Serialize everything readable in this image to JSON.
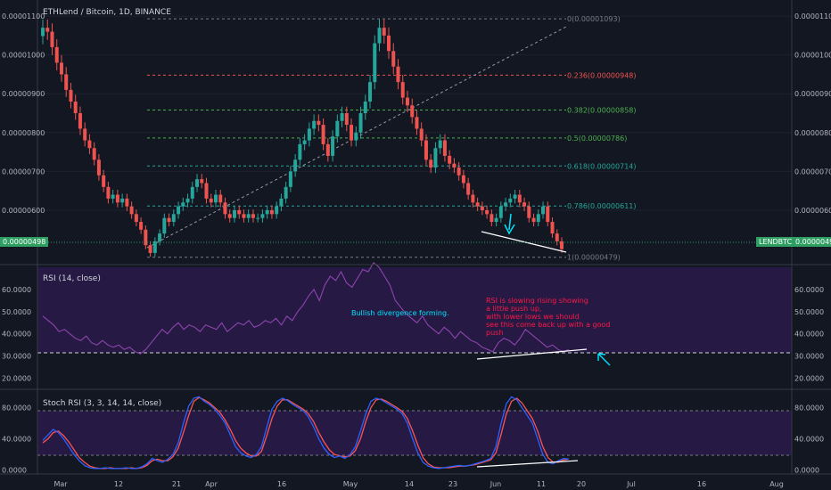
{
  "header": {
    "title": "ETHLend / Bitcoin, 1D, BINANCE"
  },
  "colors": {
    "up": "#26a69a",
    "down": "#ef5350",
    "bg": "#131722",
    "grid": "#1e2230",
    "fib_red": "#ef5350",
    "fib_green": "#4caf50",
    "fib_teal": "#26a69a",
    "fib_gray": "#787b86",
    "rsi_band": "#2a1b4a",
    "rsi_line": "#7b3fa0",
    "stoch_k": "#2962ff",
    "stoch_d": "#ff5252",
    "annotation_red": "#ff1744",
    "annotation_cyan": "#00e5ff",
    "price_tag": "#2e9e63"
  },
  "price_tag": {
    "symbol": "LENDBTC",
    "value": "0.00000498",
    "left_value": "0.00000498"
  },
  "chart_data": [
    {
      "type": "candlestick",
      "title": "ETHLend / Bitcoin, 1D, BINANCE",
      "ylim": [
        4.6e-06,
        1.13e-05
      ],
      "y_ticks": [
        "0.00001100",
        "0.00001000",
        "0.00000900",
        "0.00000800",
        "0.00000700",
        "0.00000600"
      ],
      "x_ticks": [
        "Mar",
        "12",
        "21",
        "Apr",
        "16",
        "May",
        "14",
        "23",
        "Jun",
        "11",
        "20",
        "Jul",
        "16",
        "Aug"
      ],
      "fib_levels": [
        {
          "label": "0(0.00001093)",
          "value": 1.093e-05,
          "color": "fib_gray"
        },
        {
          "label": "0.236(0.00000948)",
          "value": 9.48e-06,
          "color": "fib_red"
        },
        {
          "label": "0.382(0.00000858)",
          "value": 8.58e-06,
          "color": "fib_green"
        },
        {
          "label": "0.5(0.00000786)",
          "value": 7.86e-06,
          "color": "fib_green"
        },
        {
          "label": "0.618(0.00000714)",
          "value": 7.14e-06,
          "color": "fib_teal"
        },
        {
          "label": "0.786(0.00000611)",
          "value": 6.11e-06,
          "color": "fib_teal"
        },
        {
          "label": "1(0.00000479)",
          "value": 4.79e-06,
          "color": "fib_gray"
        }
      ],
      "close_series": [
        1.07e-05,
        1.06e-05,
        1.02e-05,
        9.8e-06,
        9.5e-06,
        9.1e-06,
        8.8e-06,
        8.5e-06,
        8.1e-06,
        7.8e-06,
        7.6e-06,
        7.3e-06,
        6.9e-06,
        6.6e-06,
        6.3e-06,
        6.4e-06,
        6.2e-06,
        6.3e-06,
        6.1e-06,
        5.9e-06,
        5.7e-06,
        5.5e-06,
        5.1e-06,
        4.9e-06,
        5.2e-06,
        5.4e-06,
        5.8e-06,
        5.7e-06,
        5.9e-06,
        6.1e-06,
        6.2e-06,
        6.3e-06,
        6.6e-06,
        6.8e-06,
        6.7e-06,
        6.3e-06,
        6.2e-06,
        6.4e-06,
        6.2e-06,
        5.9e-06,
        5.8e-06,
        6e-06,
        5.9e-06,
        5.8e-06,
        5.9e-06,
        5.8e-06,
        5.8e-06,
        5.9e-06,
        6e-06,
        5.9e-06,
        6.1e-06,
        6.3e-06,
        6.6e-06,
        7e-06,
        7.3e-06,
        7.7e-06,
        7.8e-06,
        8.1e-06,
        8.3e-06,
        8.2e-06,
        7.7e-06,
        7.4e-06,
        7.9e-06,
        8.3e-06,
        8.5e-06,
        8.2e-06,
        7.8e-06,
        8e-06,
        8.5e-06,
        8.8e-06,
        9.3e-06,
        1.03e-05,
        1.07e-05,
        1.05e-05,
        1.01e-05,
        9.7e-06,
        9.3e-06,
        8.9e-06,
        8.7e-06,
        8.4e-06,
        8.1e-06,
        7.8e-06,
        7.3e-06,
        7.1e-06,
        7.6e-06,
        7.8e-06,
        7.4e-06,
        7.2e-06,
        7.1e-06,
        6.9e-06,
        6.7e-06,
        6.4e-06,
        6.2e-06,
        6.1e-06,
        6e-06,
        5.9e-06,
        5.7e-06,
        5.8e-06,
        6.1e-06,
        6.2e-06,
        6.3e-06,
        6.4e-06,
        6.2e-06,
        6.1e-06,
        5.8e-06,
        5.7e-06,
        5.9e-06,
        6.1e-06,
        5.7e-06,
        5.4e-06,
        5.2e-06,
        5e-06
      ]
    },
    {
      "type": "line",
      "title": "RSI (14, close)",
      "ylim": [
        15,
        70
      ],
      "y_ticks": [
        "60.0000",
        "50.0000",
        "40.0000",
        "30.0000",
        "20.0000"
      ],
      "band": [
        30,
        70
      ],
      "level_line": 30,
      "values": [
        48,
        46,
        44,
        41,
        42,
        40,
        38,
        37,
        39,
        36,
        35,
        37,
        35,
        34,
        35,
        33,
        34,
        32,
        31,
        33,
        36,
        39,
        42,
        40,
        43,
        45,
        42,
        44,
        43,
        41,
        44,
        43,
        42,
        45,
        41,
        43,
        45,
        44,
        46,
        43,
        44,
        46,
        45,
        47,
        44,
        48,
        46,
        50,
        53,
        57,
        60,
        55,
        62,
        66,
        64,
        68,
        63,
        61,
        65,
        69,
        68,
        72,
        70,
        66,
        62,
        55,
        52,
        49,
        47,
        45,
        48,
        44,
        42,
        40,
        43,
        41,
        38,
        41,
        39,
        37,
        36,
        34,
        33,
        32,
        36,
        38,
        37,
        35,
        38,
        42,
        40,
        38,
        36,
        34,
        35,
        33,
        32,
        33
      ],
      "annotations": [
        "Bullish divergence forming.",
        "RSI is slowing rising showing",
        "a little push up,",
        "with lower lows we should",
        "see this come back up with a good",
        "push"
      ]
    },
    {
      "type": "line",
      "title": "Stoch RSI (3, 3, 14, 14, close)",
      "ylim": [
        -5,
        100
      ],
      "y_ticks": [
        "80.0000",
        "40.0000",
        "0.0000"
      ],
      "band": [
        20,
        80
      ],
      "series": [
        {
          "values": [
            38,
            45,
            52,
            48,
            40,
            30,
            20,
            12,
            6,
            3,
            2,
            2,
            3,
            2,
            2,
            2,
            3,
            2,
            2,
            4,
            8,
            15,
            12,
            10,
            14,
            20,
            35,
            60,
            82,
            92,
            94,
            88,
            84,
            78,
            70,
            60,
            45,
            30,
            22,
            18,
            16,
            20,
            30,
            55,
            78,
            88,
            92,
            89,
            84,
            80,
            76,
            68,
            55,
            40,
            28,
            20,
            16,
            18,
            15,
            20,
            30,
            50,
            72,
            88,
            92,
            90,
            86,
            82,
            78,
            72,
            60,
            40,
            22,
            10,
            5,
            3,
            2,
            3,
            4,
            5,
            6,
            5,
            6,
            8,
            10,
            12,
            15,
            30,
            60,
            85,
            94,
            90,
            80,
            70,
            60,
            40,
            20,
            10,
            8,
            12,
            15,
            14
          ]
        },
        {
          "values": [
            35,
            40,
            48,
            50,
            44,
            36,
            26,
            16,
            10,
            5,
            3,
            2,
            2,
            3,
            2,
            2,
            2,
            3,
            2,
            3,
            6,
            12,
            14,
            12,
            12,
            17,
            28,
            48,
            70,
            88,
            93,
            90,
            86,
            80,
            74,
            64,
            52,
            38,
            28,
            22,
            18,
            18,
            24,
            44,
            66,
            82,
            90,
            90,
            86,
            82,
            78,
            72,
            62,
            48,
            36,
            26,
            20,
            18,
            17,
            18,
            25,
            40,
            62,
            80,
            90,
            91,
            88,
            84,
            80,
            75,
            66,
            50,
            32,
            16,
            8,
            4,
            3,
            3,
            3,
            4,
            5,
            5,
            6,
            7,
            9,
            11,
            13,
            22,
            46,
            72,
            88,
            92,
            86,
            76,
            66,
            50,
            30,
            16,
            10,
            10,
            13,
            14
          ]
        }
      ]
    }
  ]
}
